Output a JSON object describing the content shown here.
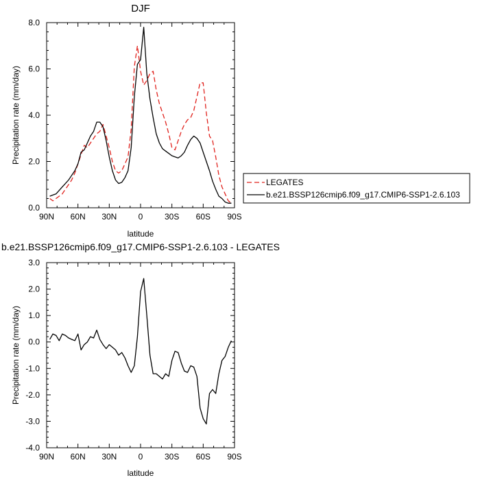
{
  "chart_data": [
    {
      "type": "line",
      "title": "DJF",
      "xlabel": "latitude",
      "ylabel": "Precipitation rate (mm/day)",
      "xlim": [
        -90,
        90
      ],
      "ylim": [
        0,
        8
      ],
      "x_reversed": true,
      "x_ticks": [
        {
          "value": -90,
          "label": "90N"
        },
        {
          "value": -60,
          "label": "60N"
        },
        {
          "value": -30,
          "label": "30N"
        },
        {
          "value": 0,
          "label": "0"
        },
        {
          "value": 30,
          "label": "30S"
        },
        {
          "value": 60,
          "label": "60S"
        },
        {
          "value": 90,
          "label": "90S"
        }
      ],
      "y_ticks": [
        {
          "value": 0,
          "label": "0.0"
        },
        {
          "value": 2,
          "label": "2.0"
        },
        {
          "value": 4,
          "label": "4.0"
        },
        {
          "value": 6,
          "label": "6.0"
        },
        {
          "value": 8,
          "label": "8.0"
        }
      ],
      "grid": false,
      "legend": "right",
      "series": [
        {
          "name": "LEGATES",
          "color": "#e0201b",
          "dash": true,
          "x": [
            -87,
            -84,
            -81,
            -78,
            -75,
            -72,
            -69,
            -66,
            -63,
            -60,
            -57,
            -54,
            -51,
            -48,
            -45,
            -42,
            -39,
            -36,
            -33,
            -30,
            -27,
            -24,
            -21,
            -18,
            -15,
            -12,
            -9,
            -6,
            -3,
            0,
            3,
            6,
            9,
            12,
            15,
            18,
            21,
            24,
            27,
            30,
            33,
            36,
            39,
            42,
            45,
            48,
            51,
            54,
            57,
            60,
            63,
            66,
            69,
            72,
            75,
            78,
            81,
            84,
            87
          ],
          "values": [
            0.4,
            0.3,
            0.4,
            0.5,
            0.6,
            0.8,
            1.0,
            1.2,
            1.5,
            1.9,
            2.3,
            2.7,
            2.6,
            2.8,
            3.0,
            3.2,
            3.3,
            3.6,
            3.1,
            2.6,
            2.0,
            1.6,
            1.5,
            1.6,
            1.9,
            2.2,
            3.4,
            6.1,
            7.0,
            5.9,
            5.3,
            5.5,
            5.8,
            5.9,
            5.1,
            4.5,
            4.1,
            3.7,
            3.2,
            2.6,
            2.5,
            2.9,
            3.3,
            3.6,
            3.8,
            3.9,
            4.2,
            4.8,
            5.4,
            5.4,
            4.1,
            3.1,
            2.9,
            2.2,
            1.4,
            0.9,
            0.6,
            0.3,
            0.2
          ]
        },
        {
          "name": "b.e21.BSSP126cmip6.f09_g17.CMIP6-SSP1-2.6.103",
          "color": "#000000",
          "dash": false,
          "x": [
            -87,
            -84,
            -81,
            -78,
            -75,
            -72,
            -69,
            -66,
            -63,
            -60,
            -57,
            -54,
            -51,
            -48,
            -45,
            -42,
            -39,
            -36,
            -33,
            -30,
            -27,
            -24,
            -21,
            -18,
            -15,
            -12,
            -9,
            -6,
            -3,
            0,
            3,
            6,
            9,
            12,
            15,
            18,
            21,
            24,
            27,
            30,
            33,
            36,
            39,
            42,
            45,
            48,
            51,
            54,
            57,
            60,
            63,
            66,
            69,
            72,
            75,
            78,
            81,
            84,
            87
          ],
          "values": [
            0.5,
            0.55,
            0.6,
            0.75,
            0.9,
            1.05,
            1.2,
            1.4,
            1.6,
            1.9,
            2.4,
            2.5,
            2.8,
            3.1,
            3.3,
            3.7,
            3.7,
            3.5,
            2.9,
            2.2,
            1.6,
            1.2,
            1.05,
            1.1,
            1.3,
            1.6,
            2.6,
            4.8,
            6.2,
            6.4,
            7.8,
            5.8,
            4.7,
            3.9,
            3.2,
            2.8,
            2.55,
            2.45,
            2.35,
            2.25,
            2.2,
            2.15,
            2.25,
            2.4,
            2.7,
            2.95,
            3.1,
            3.0,
            2.8,
            2.4,
            2.0,
            1.6,
            1.15,
            0.8,
            0.5,
            0.4,
            0.25,
            0.2,
            0.2
          ]
        }
      ]
    },
    {
      "type": "line",
      "title": "b.e21.BSSP126cmip6.f09_g17.CMIP6-SSP1-2.6.103 - LEGATES",
      "xlabel": "latitude",
      "ylabel": "Precipitation rate (mm/day)",
      "xlim": [
        -90,
        90
      ],
      "ylim": [
        -4,
        3
      ],
      "x_reversed": true,
      "x_ticks": [
        {
          "value": -90,
          "label": "90N"
        },
        {
          "value": -60,
          "label": "60N"
        },
        {
          "value": -30,
          "label": "30N"
        },
        {
          "value": 0,
          "label": "0"
        },
        {
          "value": 30,
          "label": "30S"
        },
        {
          "value": 60,
          "label": "60S"
        },
        {
          "value": 90,
          "label": "90S"
        }
      ],
      "y_ticks": [
        {
          "value": -4,
          "label": "-4.0"
        },
        {
          "value": -3,
          "label": "-3.0"
        },
        {
          "value": -2,
          "label": "-2.0"
        },
        {
          "value": -1,
          "label": "-1.0"
        },
        {
          "value": 0,
          "label": "0.0"
        },
        {
          "value": 1,
          "label": "1.0"
        },
        {
          "value": 2,
          "label": "2.0"
        },
        {
          "value": 3,
          "label": "3.0"
        }
      ],
      "grid": false,
      "series": [
        {
          "color": "#000000",
          "dash": false,
          "x": [
            -87,
            -84,
            -81,
            -78,
            -75,
            -72,
            -69,
            -66,
            -63,
            -60,
            -57,
            -54,
            -51,
            -48,
            -45,
            -42,
            -39,
            -36,
            -33,
            -30,
            -27,
            -24,
            -21,
            -18,
            -15,
            -12,
            -9,
            -6,
            -3,
            0,
            3,
            6,
            9,
            12,
            15,
            18,
            21,
            24,
            27,
            30,
            33,
            36,
            39,
            42,
            45,
            48,
            51,
            54,
            57,
            60,
            63,
            66,
            69,
            72,
            75,
            78,
            81,
            84,
            87
          ],
          "values": [
            0.1,
            0.3,
            0.25,
            0.05,
            0.3,
            0.25,
            0.15,
            0.1,
            0.05,
            0.3,
            -0.3,
            -0.1,
            0.0,
            0.2,
            0.15,
            0.45,
            0.1,
            -0.1,
            -0.25,
            -0.1,
            -0.2,
            -0.3,
            -0.5,
            -0.4,
            -0.6,
            -0.9,
            -1.15,
            -0.9,
            0.2,
            1.9,
            2.4,
            1.0,
            -0.5,
            -1.2,
            -1.2,
            -1.3,
            -1.4,
            -1.2,
            -1.3,
            -0.7,
            -0.35,
            -0.4,
            -0.8,
            -1.1,
            -1.15,
            -0.9,
            -0.95,
            -1.3,
            -2.5,
            -2.9,
            -3.1,
            -1.95,
            -1.8,
            -1.95,
            -1.2,
            -0.7,
            -0.55,
            -0.2,
            0.05
          ]
        }
      ]
    }
  ]
}
